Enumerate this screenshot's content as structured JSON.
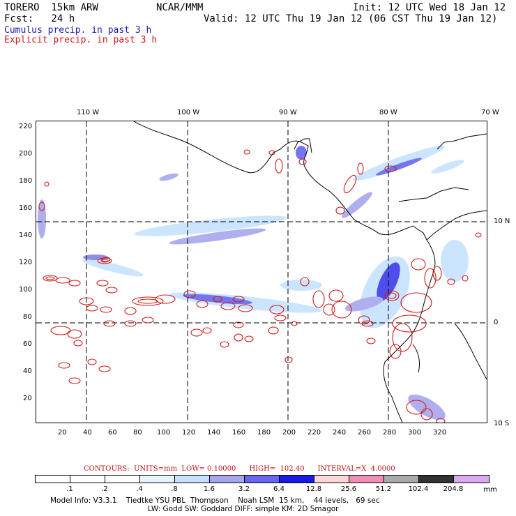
{
  "header": {
    "model": "TORERO  15km ARW",
    "org": "NCAR/MMM",
    "init": "Init: 12 UTC Wed 18 Jan 12",
    "fcst": "Fcst:   24 h",
    "valid": "Valid: 12 UTC Thu 19 Jan 12 (06 CST Thu 19 Jan 12)",
    "legend_cumulus": "Cumulus precip. in past 3 h",
    "legend_explicit": "Explicit precip. in past 3 h"
  },
  "map": {
    "lon_labels": [
      "110 W",
      "100 W",
      "90 W",
      "80 W",
      "70 W"
    ],
    "lat_labels": [
      "10 N",
      "0",
      "10 S"
    ],
    "x_ticks": [
      "20",
      "40",
      "60",
      "80",
      "100",
      "120",
      "140",
      "160",
      "180",
      "200",
      "220",
      "240",
      "260",
      "280",
      "300",
      "320"
    ],
    "y_ticks": [
      "220",
      "200",
      "180",
      "160",
      "140",
      "120",
      "100",
      "80",
      "60",
      "40",
      "20"
    ]
  },
  "contours_caption": {
    "text": "CONTOURS:  UNITS=mm  LOW= 0.10000      HIGH=  102.40      INTERVAL=X  4.0000"
  },
  "colorbar": {
    "levels": [
      ".1",
      ".2",
      ".4",
      ".8",
      "1.6",
      "3.2",
      "6.4",
      "12.8",
      "25.6",
      "51.2",
      "102.4",
      "204.8"
    ],
    "unit": "mm",
    "colors": [
      "#ffffff",
      "#ffffff",
      "#ffffff",
      "#e6f4ff",
      "#c6e1ff",
      "#a6a6ee",
      "#6666ee",
      "#1a1ae6",
      "#ffd6d6",
      "#f08fb4",
      "#aaaaaa",
      "#333333",
      "#dba8f2"
    ]
  },
  "model_info": {
    "line1": "Model Info: V3.3.1    Tiedtke YSU PBL  Thompson    Noah LSM  15 km,    44 levels,   69 sec",
    "line2": "LW: Godd SW: Goddard DIFF: simple KM: 2D Smagor"
  }
}
